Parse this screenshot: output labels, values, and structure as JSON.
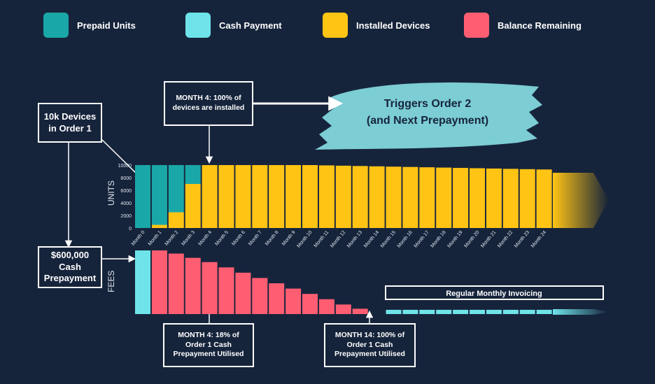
{
  "legend": [
    {
      "label": "Prepaid Units",
      "color": "#1aa7a8"
    },
    {
      "label": "Cash Payment",
      "color": "#6fe3ea"
    },
    {
      "label": "Installed Devices",
      "color": "#ffc414"
    },
    {
      "label": "Balance Remaining",
      "color": "#ff5e72"
    }
  ],
  "callouts": {
    "order1": "10k Devices in Order 1",
    "month4_top": "MONTH 4: 100% of devices are installed",
    "cash": "$600,000 Cash Prepayment",
    "month4_bottom": "MONTH 4: 18% of Order 1 Cash Prepayment Utilised",
    "month14": "MONTH 14: 100% of Order 1 Cash Prepayment Utilised",
    "triggers_line1": "Triggers Order 2",
    "triggers_line2": "(and Next Prepayment)",
    "regular": "Regular Monthly Invoicing"
  },
  "chart_data": [
    {
      "type": "bar",
      "title": "",
      "ylabel": "UNITS",
      "ylim": [
        0,
        10000
      ],
      "yticks": [
        0,
        2000,
        4000,
        6000,
        8000,
        10000
      ],
      "categories": [
        "Month 0",
        "Month 1",
        "Month 2",
        "Month 3",
        "Month 4",
        "Month 5",
        "Month 6",
        "Month 7",
        "Month 8",
        "Month 9",
        "Month 10",
        "Month 11",
        "Month 12",
        "Month 13",
        "Month 14",
        "Month 15",
        "Month 16",
        "Month 17",
        "Month 18",
        "Month 19",
        "Month 20",
        "Month 21",
        "Month 22",
        "Month 23",
        "Month 24"
      ],
      "series": [
        {
          "name": "Installed Devices",
          "values": [
            0,
            500,
            2500,
            7000,
            10000,
            10000,
            10000,
            10000,
            10000,
            10000,
            10000,
            9950,
            9900,
            9850,
            9800,
            9750,
            9700,
            9650,
            9600,
            9550,
            9500,
            9450,
            9400,
            9350,
            9300
          ]
        },
        {
          "name": "Prepaid Units",
          "values": [
            10000,
            9500,
            7500,
            3000,
            0,
            0,
            0,
            0,
            0,
            0,
            0,
            0,
            0,
            0,
            0,
            0,
            0,
            0,
            0,
            0,
            0,
            0,
            0,
            0,
            0
          ]
        }
      ]
    },
    {
      "type": "bar",
      "ylabel": "FEES",
      "series": [
        {
          "name": "Cash Payment",
          "values": [
            600000,
            0,
            0,
            0,
            0,
            0,
            0,
            0,
            0,
            0,
            0,
            0,
            0,
            0,
            0,
            0,
            0,
            0,
            0,
            0,
            0,
            0,
            0,
            0,
            0
          ]
        },
        {
          "name": "Balance Remaining",
          "values": [
            0,
            600000,
            570000,
            530000,
            490000,
            440000,
            390000,
            340000,
            290000,
            240000,
            190000,
            140000,
            90000,
            50000,
            0,
            0,
            0,
            0,
            0,
            0,
            0,
            0,
            0,
            0,
            0
          ]
        },
        {
          "name": "Regular Monthly Invoicing",
          "values": [
            0,
            0,
            0,
            0,
            0,
            0,
            0,
            0,
            0,
            0,
            0,
            0,
            0,
            0,
            0,
            40000,
            40000,
            40000,
            40000,
            40000,
            40000,
            40000,
            40000,
            40000,
            40000
          ]
        }
      ]
    }
  ]
}
